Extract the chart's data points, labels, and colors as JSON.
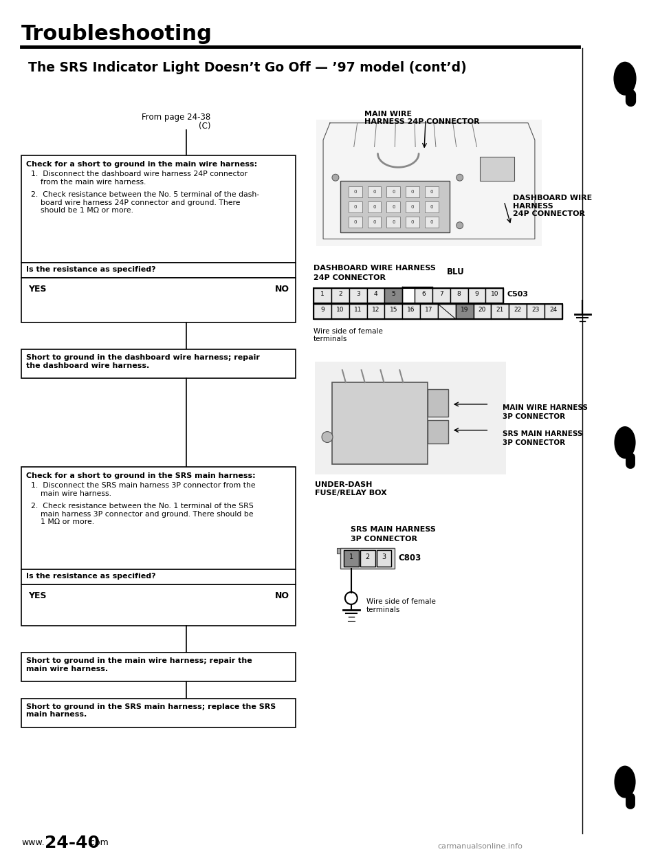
{
  "title": "Troubleshooting",
  "subtitle": "The SRS Indicator Light Doesn’t Go Off — ’97 model (cont’d)",
  "from_page": "From page 24-38",
  "from_page_c": "(C)",
  "main_wire_label": "MAIN WIRE\nHARNESS 24P CONNECTOR",
  "dashboard_wire_label": "DASHBOARD WIRE\nHARNESS\n24P CONNECTOR",
  "dashboard_wire_24p_line1": "DASHBOARD WIRE HARNESS",
  "dashboard_wire_24p_line2": "24P CONNECTOR",
  "blu_label": "BLU",
  "c503_label": "C503",
  "wire_side_female1": "Wire side of female\nterminals",
  "main_wire_harness_3p_line1": "MAIN WIRE HARNESS",
  "main_wire_harness_3p_line2": "3P CONNECTOR",
  "srs_main_harness_3p_line1": "SRS MAIN HARNESS",
  "srs_main_harness_3p_line2": "3P CONNECTOR",
  "under_dash_line1": "UNDER-DASH",
  "under_dash_line2": "FUSE/RELAY BOX",
  "srs_main_harness_bot_line1": "SRS MAIN HARNESS",
  "srs_main_harness_bot_line2": "3P CONNECTOR",
  "c803_label": "C803",
  "wire_side_female2": "Wire side of female\nterminals",
  "box1_title": "Check for a short to ground in the main wire harness:",
  "box1_item1": "Disconnect the dashboard wire harness 24P connector\n    from the main wire harness.",
  "box1_item2": "Check resistance between the No. 5 terminal of the dash-\n    board wire harness 24P connector and ground. There\n    should be 1 MΩ or more.",
  "box1_question": "Is the resistance as specified?",
  "box1_yes": "YES",
  "box1_no": "NO",
  "box1_no_result": "Short to ground in the dashboard wire harness; repair\nthe dashboard wire harness.",
  "box2_title": "Check for a short to ground in the SRS main harness:",
  "box2_item1": "Disconnect the SRS main harness 3P connector from the\n    main wire harness.",
  "box2_item2": "Check resistance between the No. 1 terminal of the SRS\n    main harness 3P connector and ground. There should be\n    1 MΩ or more.",
  "box2_question": "Is the resistance as specified?",
  "box2_yes": "YES",
  "box2_no": "NO",
  "box2_no_result": "Short to ground in the main wire harness; repair the\nmain wire harness.",
  "box3_result": "Short to ground in the SRS main harness; replace the SRS\nmain harness.",
  "page_number": "24-40",
  "bg_color": "#ffffff",
  "text_color": "#000000"
}
